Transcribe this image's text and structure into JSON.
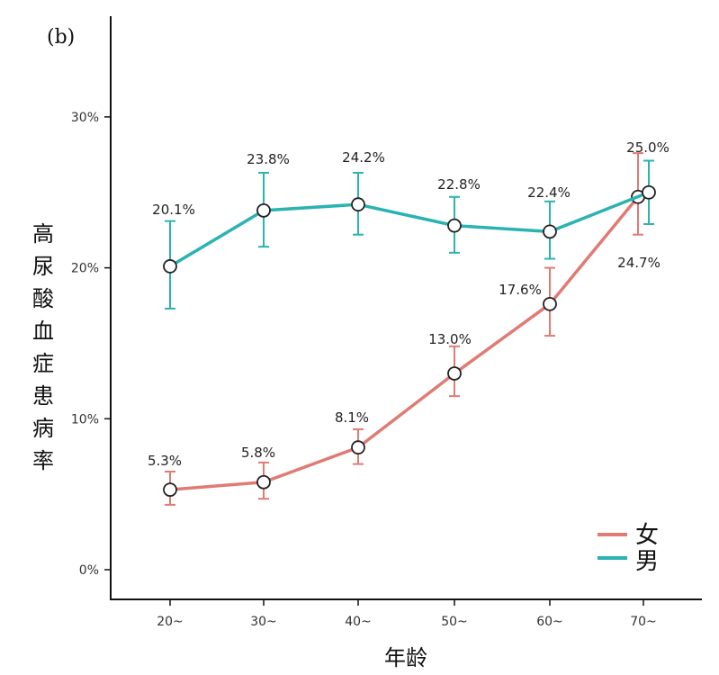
{
  "chart_data": {
    "type": "line",
    "panel_label": "(b)",
    "xlabel": "年龄",
    "ylabel": "高尿酸血症患病率",
    "categories": [
      "20~",
      "30~",
      "40~",
      "50~",
      "60~",
      "70~"
    ],
    "y_ticks": [
      "0%",
      "10%",
      "20%",
      "30%"
    ],
    "ylim": [
      0,
      37
    ],
    "grid": false,
    "legend_position": "bottom-right",
    "series": [
      {
        "name": "女",
        "color": "#e07b74",
        "values": [
          5.3,
          5.8,
          8.1,
          13.0,
          17.6,
          24.7
        ],
        "labels": [
          "5.3%",
          "5.8%",
          "8.1%",
          "13.0%",
          "17.6%",
          "24.7%"
        ],
        "err_low": [
          4.3,
          4.7,
          7.0,
          11.5,
          15.5,
          22.2
        ],
        "err_high": [
          6.5,
          7.1,
          9.3,
          14.8,
          20.0,
          27.6
        ]
      },
      {
        "name": "男",
        "color": "#2ab3b1",
        "values": [
          20.1,
          23.8,
          24.2,
          22.8,
          22.4,
          25.0
        ],
        "labels": [
          "20.1%",
          "23.8%",
          "24.2%",
          "22.8%",
          "22.4%",
          "25.0%"
        ],
        "err_low": [
          17.3,
          21.4,
          22.2,
          21.0,
          20.6,
          22.9
        ],
        "err_high": [
          23.1,
          26.3,
          26.3,
          24.7,
          24.4,
          27.1
        ]
      }
    ]
  }
}
